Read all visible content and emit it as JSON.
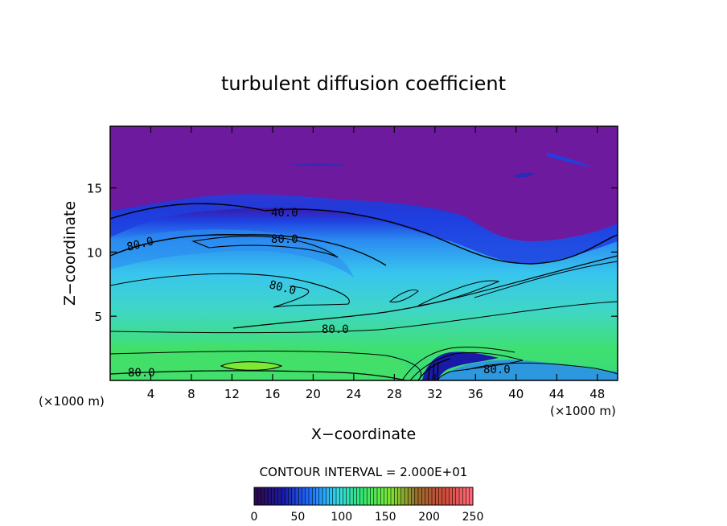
{
  "chart_data": {
    "type": "heatmap",
    "title": "turbulent diffusion coefficient",
    "xlabel": "X−coordinate",
    "ylabel": "Z−coordinate",
    "x_unit_left": "(×1000 m)",
    "x_unit_right": "(×1000 m)",
    "xlim": [
      0,
      50
    ],
    "ylim": [
      0,
      19.8
    ],
    "x_ticks": [
      "4",
      "8",
      "12",
      "16",
      "20",
      "24",
      "28",
      "32",
      "36",
      "40",
      "44",
      "48"
    ],
    "y_ticks": [
      "5",
      "10",
      "15"
    ],
    "contour_interval_text": "CONTOUR INTERVAL = 2.000E+01",
    "contour_labels": [
      "40.0",
      "80.0",
      "80.0",
      "80.0",
      "80.0",
      "80.0",
      "80.0"
    ],
    "colorbar": {
      "range": [
        0,
        250
      ],
      "ticks": [
        "0",
        "50",
        "100",
        "150",
        "200",
        "250"
      ],
      "colormap": [
        "#2b0a4a",
        "#1a1aa8",
        "#1f6fff",
        "#33d6e8",
        "#33e86a",
        "#7ee833",
        "#9a6b2b",
        "#d24a3a",
        "#ff6a7a"
      ]
    },
    "colors": {
      "background_low": "#6e1a9e",
      "mid": "#3ec7ee",
      "high": "#45e066"
    }
  }
}
